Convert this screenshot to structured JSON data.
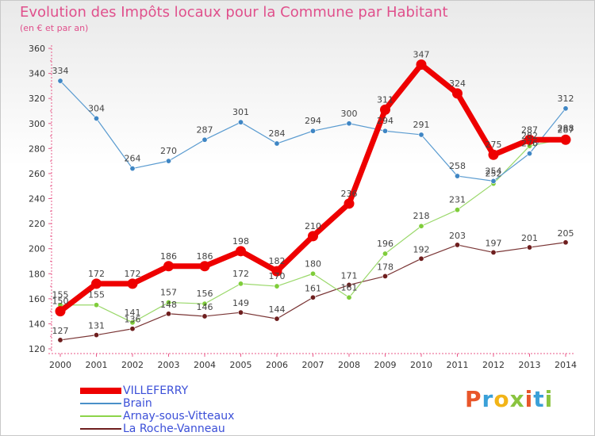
{
  "header": {
    "title": "Evolution des Impôts locaux pour la Commune par Habitant",
    "subtitle": "(en € et par an)"
  },
  "brand": {
    "letters": [
      "P",
      "r",
      "o",
      "x",
      "i",
      "t",
      "i"
    ],
    "colors": [
      "#e8562a",
      "#3aa0d8",
      "#f2b417",
      "#8ac43f",
      "#e8562a",
      "#3aa0d8",
      "#8ac43f"
    ]
  },
  "chart_data": {
    "type": "line",
    "title": "Evolution des Impôts locaux pour la Commune par Habitant",
    "subtitle": "(en € et par an)",
    "x": [
      "2000",
      "2001",
      "2002",
      "2003",
      "2004",
      "2005",
      "2006",
      "2007",
      "2008",
      "2009",
      "2010",
      "2011",
      "2012",
      "2013",
      "2014"
    ],
    "ylim": [
      120,
      360
    ],
    "yticks": [
      120,
      140,
      160,
      180,
      200,
      220,
      240,
      260,
      280,
      300,
      320,
      340,
      360
    ],
    "grid": false,
    "legend_position": "bottom-left",
    "series": [
      {
        "name": "VILLEFERRY",
        "color": "#ee0000",
        "values": [
          150,
          172,
          172,
          186,
          186,
          198,
          182,
          210,
          236,
          311,
          347,
          324,
          275,
          287,
          287
        ]
      },
      {
        "name": "Brain",
        "color": "#4a90c8",
        "values": [
          334,
          304,
          264,
          270,
          287,
          301,
          284,
          294,
          300,
          294,
          291,
          258,
          254,
          276,
          312
        ]
      },
      {
        "name": "Arnay-sous-Vitteaux",
        "color": "#8cd44a",
        "values": [
          155,
          155,
          141,
          157,
          156,
          172,
          170,
          180,
          161,
          196,
          218,
          231,
          252,
          282,
          288
        ]
      },
      {
        "name": "La Roche-Vanneau",
        "color": "#6e1e1e",
        "values": [
          127,
          131,
          136,
          148,
          146,
          149,
          144,
          161,
          171,
          178,
          192,
          203,
          197,
          201,
          205
        ]
      }
    ]
  }
}
